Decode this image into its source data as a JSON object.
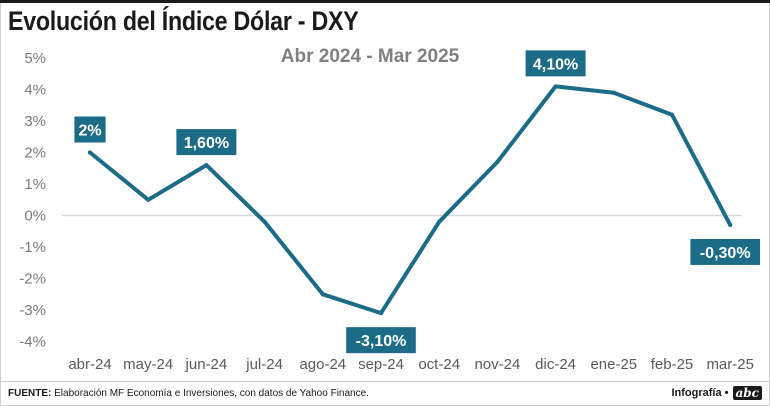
{
  "title": "Evolución del Índice Dólar - DXY",
  "subtitle": "Abr 2024 - Mar 2025",
  "footer": {
    "source_label": "FUENTE:",
    "source_text": "Elaboración MF Economía e Inversiones, con datos de Yahoo Finance.",
    "credit_text": "Infografía •",
    "logo_text": "abc"
  },
  "colors": {
    "line": "#1c6b87",
    "label_bg": "#1c6b87",
    "zero_line": "#d9d9d9"
  },
  "chart_data": {
    "type": "line",
    "title": "Evolución del Índice Dólar - DXY",
    "subtitle": "Abr 2024 - Mar 2025",
    "categories": [
      "abr-24",
      "may-24",
      "jun-24",
      "jul-24",
      "ago-24",
      "sep-24",
      "oct-24",
      "nov-24",
      "dic-24",
      "ene-25",
      "feb-25",
      "mar-25"
    ],
    "values": [
      2.0,
      0.5,
      1.6,
      -0.2,
      -2.5,
      -3.1,
      -0.2,
      1.7,
      4.1,
      3.9,
      3.2,
      -0.3
    ],
    "y_ticks": [
      "5%",
      "4%",
      "3%",
      "2%",
      "1%",
      "0%",
      "-1%",
      "-2%",
      "-3%",
      "-4%"
    ],
    "ylim": [
      -4,
      5
    ],
    "grid": false,
    "data_labels": [
      {
        "index": 0,
        "text": "2%"
      },
      {
        "index": 2,
        "text": "1,60%"
      },
      {
        "index": 5,
        "text": "-3,10%"
      },
      {
        "index": 8,
        "text": "4,10%"
      },
      {
        "index": 11,
        "text": "-0,30%"
      }
    ]
  }
}
